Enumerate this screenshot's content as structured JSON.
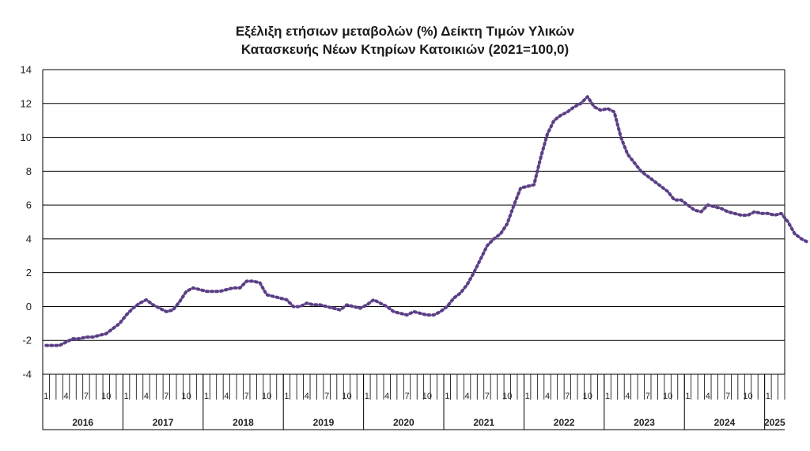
{
  "chart_data": {
    "type": "line",
    "title_line1": "Εξέλιξη ετήσιων μεταβολών (%) Δείκτη Τιμών Υλικών",
    "title_line2": "Κατασκευής Νέων Κτηρίων Κατοικιών (2021=100,0)",
    "ylim": [
      -4,
      14
    ],
    "yticks": [
      -4,
      -2,
      0,
      2,
      4,
      6,
      8,
      10,
      12,
      14
    ],
    "grid": true,
    "start": "2016-01",
    "years": [
      "2016",
      "2017",
      "2018",
      "2019",
      "2020",
      "2021",
      "2022",
      "2023",
      "2024",
      "2025"
    ],
    "month_tick_labels": [
      "1",
      "4",
      "7",
      "10"
    ],
    "series_color": "#5b3f86",
    "values": [
      -2.3,
      -2.3,
      -2.3,
      -2.1,
      -1.9,
      -1.9,
      -1.8,
      -1.8,
      -1.7,
      -1.6,
      -1.3,
      -1.0,
      -0.5,
      -0.1,
      0.2,
      0.4,
      0.1,
      -0.1,
      -0.3,
      -0.2,
      0.3,
      0.9,
      1.1,
      1.0,
      0.9,
      0.9,
      0.9,
      1.0,
      1.1,
      1.1,
      1.5,
      1.5,
      1.4,
      0.7,
      0.6,
      0.5,
      0.4,
      0.0,
      0.0,
      0.2,
      0.1,
      0.1,
      0.0,
      -0.1,
      -0.2,
      0.1,
      0.0,
      -0.1,
      0.1,
      0.4,
      0.2,
      0.0,
      -0.3,
      -0.4,
      -0.5,
      -0.3,
      -0.4,
      -0.5,
      -0.5,
      -0.3,
      0.0,
      0.5,
      0.8,
      1.3,
      2.0,
      2.8,
      3.6,
      4.0,
      4.3,
      4.9,
      6.0,
      7.0,
      7.1,
      7.2,
      8.8,
      10.2,
      11.0,
      11.3,
      11.5,
      11.8,
      12.0,
      12.4,
      11.8,
      11.6,
      11.7,
      11.5,
      10.0,
      9.0,
      8.5,
      8.0,
      7.7,
      7.4,
      7.1,
      6.8,
      6.3,
      6.3,
      6.0,
      5.7,
      5.6,
      6.0,
      5.9,
      5.8,
      5.6,
      5.5,
      5.4,
      5.4,
      5.6,
      5.5,
      5.5,
      5.4,
      5.5,
      5.0,
      4.3,
      4.0,
      3.8
    ]
  }
}
